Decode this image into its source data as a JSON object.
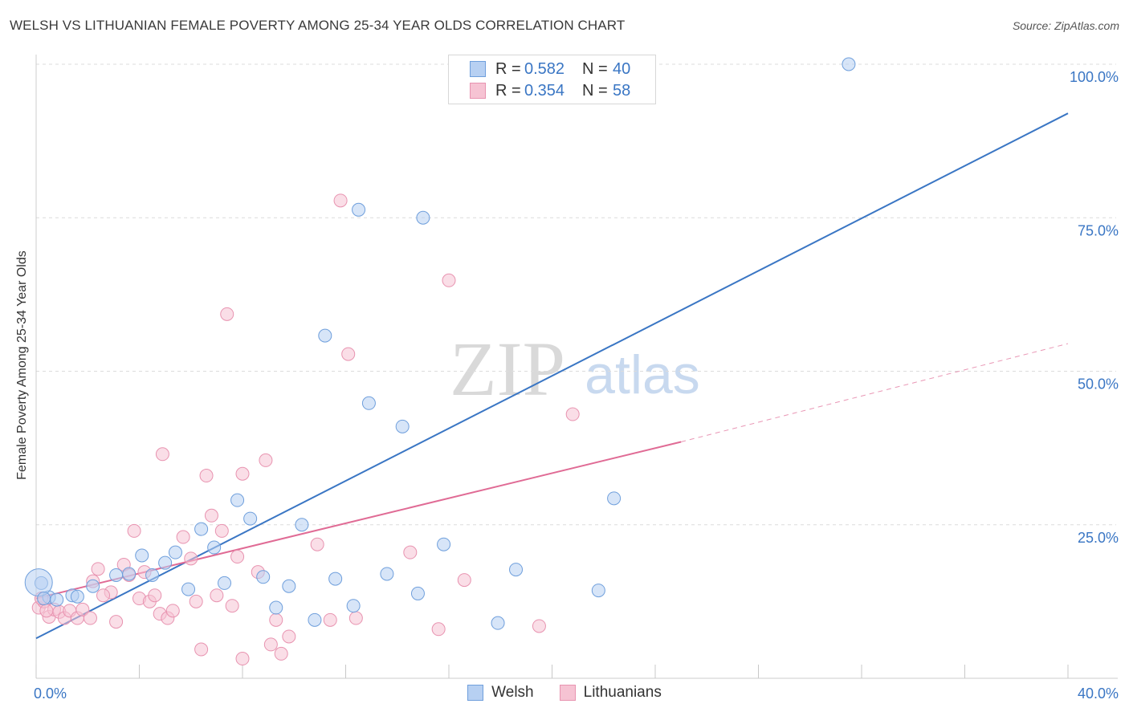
{
  "title": "WELSH VS LITHUANIAN FEMALE POVERTY AMONG 25-34 YEAR OLDS CORRELATION CHART",
  "source": "Source: ZipAtlas.com",
  "watermark": {
    "zip": "ZIP",
    "atlas": "atlas"
  },
  "legend_top": [
    {
      "r_label": "R =",
      "r_value": "0.582",
      "n_label": "N =",
      "n_value": "40"
    },
    {
      "r_label": "R =",
      "r_value": "0.354",
      "n_label": "N =",
      "n_value": "58"
    }
  ],
  "legend_bottom": [
    "Welsh",
    "Lithuanians"
  ],
  "colors": {
    "welsh_fill": "#b7d0f2",
    "welsh_stroke": "#6f9fdc",
    "welsh_line": "#3a76c4",
    "lith_fill": "#f6c3d3",
    "lith_stroke": "#e893b0",
    "lith_line": "#e06b95",
    "tick_label": "#3a76c4",
    "grid": "#dcdcdc"
  },
  "chart_data": {
    "type": "scatter",
    "title": "WELSH VS LITHUANIAN FEMALE POVERTY AMONG 25-34 YEAR OLDS CORRELATION CHART",
    "xlabel": "",
    "ylabel": "Female Poverty Among 25-34 Year Olds",
    "xlim": [
      0,
      40
    ],
    "ylim": [
      0,
      103
    ],
    "x_tick_labels": [
      "0.0%",
      "40.0%"
    ],
    "y_ticks": [
      25,
      50,
      75,
      100
    ],
    "y_tick_labels": [
      "25.0%",
      "50.0%",
      "75.0%",
      "100.0%"
    ],
    "grid": true,
    "series": [
      {
        "name": "Welsh",
        "r": 0.582,
        "n": 40,
        "points": [
          [
            0.2,
            15.5
          ],
          [
            0.5,
            13.2
          ],
          [
            0.8,
            12.8
          ],
          [
            1.4,
            13.5
          ],
          [
            1.6,
            13.3
          ],
          [
            2.2,
            15.0
          ],
          [
            3.1,
            16.8
          ],
          [
            3.6,
            17.0
          ],
          [
            4.1,
            20.0
          ],
          [
            4.5,
            16.8
          ],
          [
            5.0,
            18.8
          ],
          [
            5.4,
            20.5
          ],
          [
            5.9,
            14.5
          ],
          [
            6.4,
            24.3
          ],
          [
            6.9,
            21.3
          ],
          [
            7.3,
            15.5
          ],
          [
            7.8,
            29.0
          ],
          [
            8.3,
            26.0
          ],
          [
            8.8,
            16.5
          ],
          [
            9.3,
            11.5
          ],
          [
            9.8,
            15.0
          ],
          [
            10.3,
            25.0
          ],
          [
            10.8,
            9.5
          ],
          [
            11.2,
            55.8
          ],
          [
            11.6,
            16.2
          ],
          [
            12.3,
            11.8
          ],
          [
            12.5,
            76.3
          ],
          [
            12.9,
            44.8
          ],
          [
            13.6,
            17.0
          ],
          [
            14.2,
            41.0
          ],
          [
            14.8,
            13.8
          ],
          [
            15.0,
            75.0
          ],
          [
            15.8,
            21.8
          ],
          [
            17.9,
            9.0
          ],
          [
            18.6,
            17.7
          ],
          [
            21.8,
            14.3
          ],
          [
            22.4,
            29.3
          ],
          [
            31.5,
            100.0
          ],
          [
            0.1,
            15.6
          ],
          [
            0.3,
            13.0
          ]
        ],
        "trend": [
          [
            0,
            6.5
          ],
          [
            40,
            92.0
          ]
        ]
      },
      {
        "name": "Lithuanians",
        "r": 0.354,
        "n": 58,
        "points": [
          [
            0.1,
            11.5
          ],
          [
            0.3,
            12.5
          ],
          [
            0.5,
            10.0
          ],
          [
            0.7,
            11.2
          ],
          [
            0.9,
            10.8
          ],
          [
            1.1,
            9.8
          ],
          [
            1.3,
            11.0
          ],
          [
            1.6,
            9.8
          ],
          [
            1.8,
            11.2
          ],
          [
            2.1,
            9.8
          ],
          [
            2.2,
            15.8
          ],
          [
            2.4,
            17.8
          ],
          [
            2.9,
            14.0
          ],
          [
            3.1,
            9.2
          ],
          [
            3.4,
            18.5
          ],
          [
            3.6,
            16.8
          ],
          [
            3.8,
            24.0
          ],
          [
            4.0,
            13.0
          ],
          [
            4.2,
            17.3
          ],
          [
            4.4,
            12.5
          ],
          [
            4.6,
            13.5
          ],
          [
            4.8,
            10.5
          ],
          [
            4.9,
            36.5
          ],
          [
            5.1,
            9.8
          ],
          [
            5.3,
            11.0
          ],
          [
            5.7,
            23.0
          ],
          [
            6.0,
            19.5
          ],
          [
            6.2,
            12.5
          ],
          [
            6.4,
            4.7
          ],
          [
            6.6,
            33.0
          ],
          [
            6.8,
            26.5
          ],
          [
            7.0,
            13.5
          ],
          [
            7.2,
            24.0
          ],
          [
            7.4,
            59.3
          ],
          [
            7.6,
            11.8
          ],
          [
            7.8,
            19.8
          ],
          [
            8.0,
            3.2
          ],
          [
            8.0,
            33.3
          ],
          [
            8.6,
            17.3
          ],
          [
            8.9,
            35.5
          ],
          [
            9.1,
            5.5
          ],
          [
            9.3,
            9.5
          ],
          [
            9.5,
            4.0
          ],
          [
            9.8,
            6.8
          ],
          [
            10.9,
            21.8
          ],
          [
            11.4,
            9.5
          ],
          [
            11.8,
            77.8
          ],
          [
            12.1,
            52.8
          ],
          [
            12.4,
            9.8
          ],
          [
            14.5,
            20.5
          ],
          [
            15.6,
            8.0
          ],
          [
            16.0,
            64.8
          ],
          [
            16.6,
            16.0
          ],
          [
            19.5,
            8.5
          ],
          [
            20.8,
            43.0
          ],
          [
            0.2,
            13.0
          ],
          [
            0.4,
            11.0
          ],
          [
            2.6,
            13.5
          ]
        ],
        "trend": [
          [
            0,
            13.0
          ],
          [
            25,
            38.5
          ]
        ],
        "trend_dashed": [
          [
            25,
            38.5
          ],
          [
            40,
            54.5
          ]
        ]
      }
    ]
  }
}
